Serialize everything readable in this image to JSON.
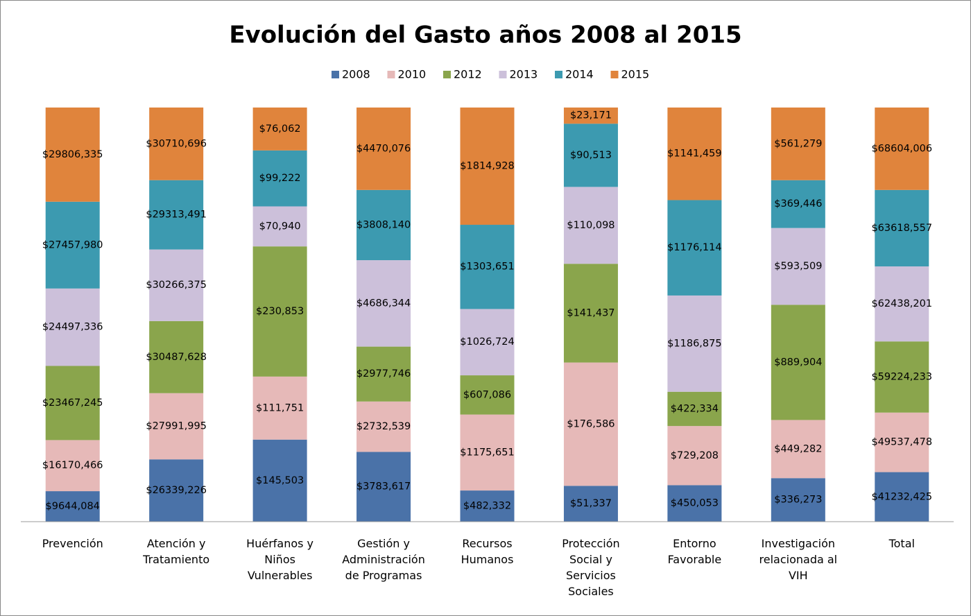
{
  "chart_data": {
    "type": "bar",
    "stacking": "percent",
    "title": "Evolución del Gasto años 2008 al 2015",
    "categories": [
      "Prevención",
      "Atención y Tratamiento",
      "Huérfanos y Niños Vulnerables",
      "Gestión y Administración de Programas",
      "Recursos Humanos",
      "Protección Social y Servicios Sociales",
      "Entorno Favorable",
      "Investigación relacionada al VIH",
      "Total"
    ],
    "legend": "top",
    "series": [
      {
        "name": "2008",
        "color": "#4a72a8",
        "values": [
          9644084,
          26339226,
          145503,
          3783617,
          482332,
          51337,
          450053,
          336273,
          41232425
        ],
        "value_labels": [
          "$9644,084",
          "$26339,226",
          "$145,503",
          "$3783,617",
          "$482,332",
          "$51,337",
          "$450,053",
          "$336,273",
          "$41232,425"
        ]
      },
      {
        "name": "2010",
        "color": "#e6b9b8",
        "values": [
          16170466,
          27991995,
          111751,
          2732539,
          1175651,
          176586,
          729208,
          449282,
          49537478
        ],
        "value_labels": [
          "$16170,466",
          "$27991,995",
          "$111,751",
          "$2732,539",
          "$1175,651",
          "$176,586",
          "$729,208",
          "$449,282",
          "$49537,478"
        ]
      },
      {
        "name": "2012",
        "color": "#8aa54c",
        "values": [
          23467245,
          30487628,
          230853,
          2977746,
          607086,
          141437,
          422334,
          889904,
          59224233
        ],
        "value_labels": [
          "$23467,245",
          "$30487,628",
          "$230,853",
          "$2977,746",
          "$607,086",
          "$141,437",
          "$422,334",
          "$889,904",
          "$59224,233"
        ]
      },
      {
        "name": "2013",
        "color": "#ccc0da",
        "values": [
          24497336,
          30266375,
          70940,
          4686344,
          1026724,
          110098,
          1186875,
          593509,
          62438201
        ],
        "value_labels": [
          "$24497,336",
          "$30266,375",
          "$70,940",
          "$4686,344",
          "$1026,724",
          "$110,098",
          "$1186,875",
          "$593,509",
          "$62438,201"
        ]
      },
      {
        "name": "2014",
        "color": "#3c9ab0",
        "values": [
          27457980,
          29313491,
          99222,
          3808140,
          1303651,
          90513,
          1176114,
          369446,
          63618557
        ],
        "value_labels": [
          "$27457,980",
          "$29313,491",
          "$99,222",
          "$3808,140",
          "$1303,651",
          "$90,513",
          "$1176,114",
          "$369,446",
          "$63618,557"
        ]
      },
      {
        "name": "2015",
        "color": "#e0843c",
        "values": [
          29806335,
          30710696,
          76062,
          4470076,
          1814928,
          23171,
          1141459,
          561279,
          68604006
        ],
        "value_labels": [
          "$29806,335",
          "$30710,696",
          "$76,062",
          "$4470,076",
          "$1814,928",
          "$23,171",
          "$1141,459",
          "$561,279",
          "$68604,006"
        ]
      }
    ]
  }
}
